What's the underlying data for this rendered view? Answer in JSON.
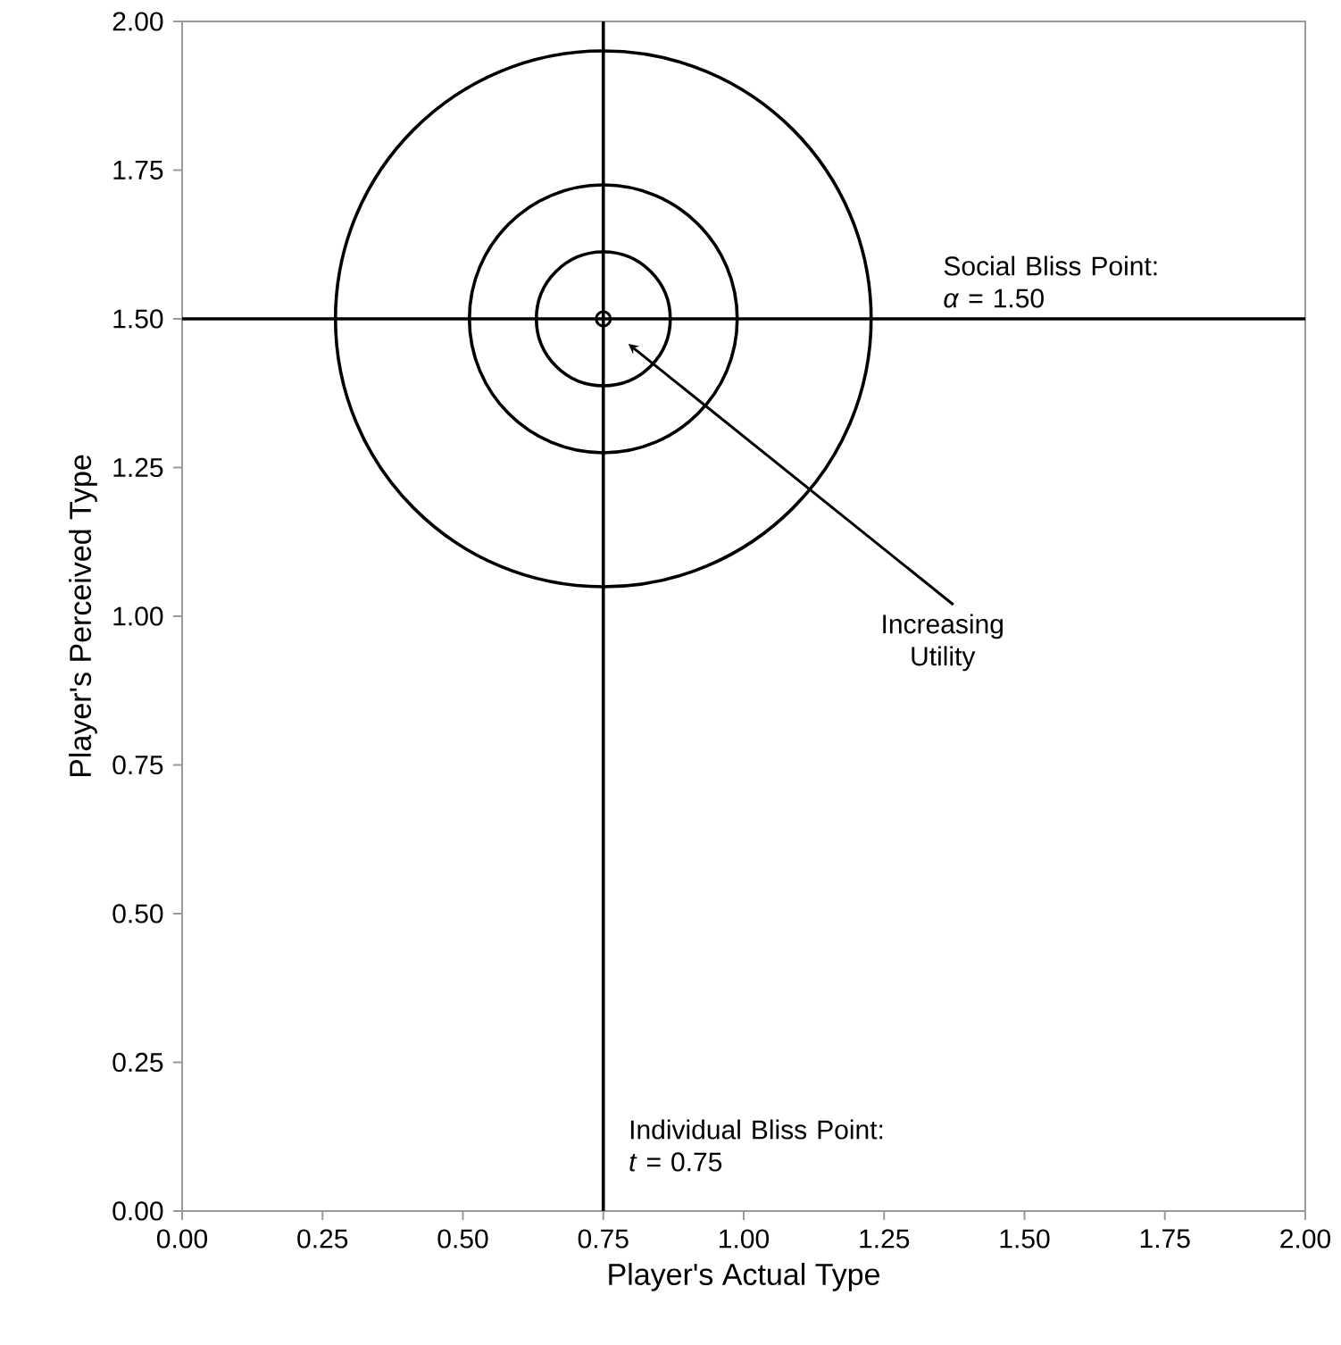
{
  "chart_data": {
    "type": "scatter",
    "xlabel": "Player's Actual Type",
    "ylabel": "Player's Perceived Type",
    "xlim": [
      0,
      2
    ],
    "ylim": [
      0,
      2
    ],
    "xticks": [
      {
        "value": 0,
        "label": "0.00"
      },
      {
        "value": 0.25,
        "label": "0.25"
      },
      {
        "value": 0.5,
        "label": "0.50"
      },
      {
        "value": 0.75,
        "label": "0.75"
      },
      {
        "value": 1,
        "label": "1.00"
      },
      {
        "value": 1.25,
        "label": "1.25"
      },
      {
        "value": 1.5,
        "label": "1.50"
      },
      {
        "value": 1.75,
        "label": "1.75"
      },
      {
        "value": 2,
        "label": "2.00"
      }
    ],
    "yticks": [
      {
        "value": 0,
        "label": "0.00"
      },
      {
        "value": 0.25,
        "label": "0.25"
      },
      {
        "value": 0.5,
        "label": "0.50"
      },
      {
        "value": 0.75,
        "label": "0.75"
      },
      {
        "value": 1,
        "label": "1.00"
      },
      {
        "value": 1.25,
        "label": "1.25"
      },
      {
        "value": 1.5,
        "label": "1.50"
      },
      {
        "value": 1.75,
        "label": "1.75"
      },
      {
        "value": 2,
        "label": "2.00"
      }
    ],
    "grid": false,
    "marker": "circle",
    "series": [
      {
        "color": "#000000",
        "x": [
          0.75
        ],
        "values": [
          1.5
        ]
      }
    ],
    "ref_lines": [
      {
        "axis": "y",
        "value": 1.5,
        "label": "Social Bliss Point: *α* = 1.50",
        "color": "#000000"
      },
      {
        "axis": "x",
        "value": 0.75,
        "label": "Individual Bliss Point: *t* = 0.75",
        "color": "#000000"
      }
    ],
    "annotations": [
      "Increasing Utility"
    ]
  }
}
